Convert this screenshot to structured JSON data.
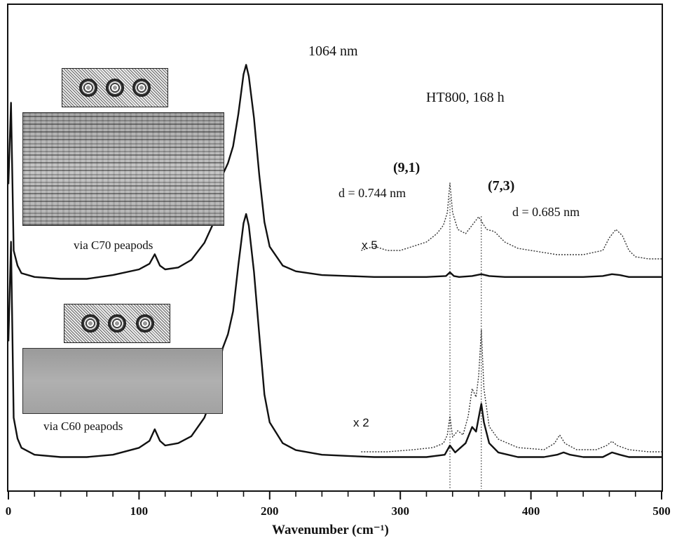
{
  "chart_data": {
    "type": "line",
    "xlabel": "Wavenumber (cm⁻¹)",
    "xlim": [
      0,
      500
    ],
    "x_ticks": [
      0,
      100,
      200,
      300,
      400,
      500
    ],
    "annotations": {
      "laser": "1064 nm",
      "condition": "HT800, 168 h",
      "peak_a_index": "(9,1)",
      "peak_a_d": "d = 0.744 nm",
      "peak_b_index": "(7,3)",
      "peak_b_d": "d = 0.685 nm",
      "scale_top": "x 5",
      "scale_bottom": "x 2",
      "inset_top_caption": "via C70 peapods",
      "inset_bottom_caption": "via C60 peapods"
    },
    "marker_lines_x": [
      338,
      362
    ],
    "series": [
      {
        "label": "via C70 peapods",
        "style": "solid",
        "x": [
          0,
          2,
          4,
          7,
          10,
          20,
          40,
          60,
          80,
          100,
          108,
          112,
          116,
          120,
          130,
          140,
          150,
          158,
          164,
          168,
          172,
          176,
          180,
          182,
          184,
          188,
          192,
          196,
          200,
          210,
          220,
          240,
          260,
          280,
          300,
          320,
          335,
          338,
          341,
          345,
          355,
          362,
          368,
          380,
          400,
          420,
          440,
          455,
          462,
          468,
          475,
          490,
          500
        ],
        "y": [
          0.55,
          0.98,
          0.2,
          0.12,
          0.08,
          0.06,
          0.05,
          0.05,
          0.07,
          0.1,
          0.13,
          0.18,
          0.12,
          0.1,
          0.11,
          0.15,
          0.24,
          0.36,
          0.6,
          0.66,
          0.75,
          0.92,
          1.13,
          1.18,
          1.12,
          0.9,
          0.6,
          0.35,
          0.22,
          0.12,
          0.09,
          0.07,
          0.065,
          0.06,
          0.06,
          0.06,
          0.065,
          0.085,
          0.065,
          0.06,
          0.065,
          0.075,
          0.065,
          0.06,
          0.06,
          0.06,
          0.06,
          0.065,
          0.075,
          0.07,
          0.06,
          0.06,
          0.06
        ]
      },
      {
        "label": "via C70 peapods x 5",
        "style": "dotted",
        "x": [
          270,
          280,
          290,
          300,
          310,
          320,
          328,
          333,
          336,
          338,
          340,
          344,
          350,
          355,
          360,
          362,
          366,
          372,
          380,
          390,
          400,
          410,
          420,
          440,
          455,
          460,
          465,
          470,
          475,
          480,
          490,
          500
        ],
        "y": [
          0.18,
          0.2,
          0.18,
          0.18,
          0.2,
          0.22,
          0.26,
          0.3,
          0.36,
          0.5,
          0.36,
          0.28,
          0.26,
          0.3,
          0.34,
          0.32,
          0.28,
          0.27,
          0.22,
          0.19,
          0.18,
          0.17,
          0.16,
          0.16,
          0.18,
          0.24,
          0.28,
          0.25,
          0.18,
          0.15,
          0.14,
          0.14
        ]
      },
      {
        "label": "via C60 peapods",
        "style": "solid",
        "x": [
          0,
          2,
          4,
          7,
          10,
          20,
          40,
          60,
          80,
          100,
          108,
          112,
          116,
          120,
          130,
          140,
          150,
          158,
          164,
          168,
          172,
          176,
          180,
          182,
          184,
          188,
          192,
          196,
          200,
          210,
          220,
          240,
          260,
          280,
          300,
          320,
          334,
          338,
          342,
          346,
          350,
          355,
          358,
          360,
          362,
          364,
          368,
          375,
          390,
          410,
          420,
          425,
          430,
          440,
          455,
          462,
          468,
          475,
          490,
          500
        ],
        "y": [
          0.55,
          0.98,
          0.22,
          0.13,
          0.09,
          0.06,
          0.05,
          0.05,
          0.06,
          0.09,
          0.12,
          0.17,
          0.12,
          0.1,
          0.11,
          0.14,
          0.22,
          0.34,
          0.52,
          0.58,
          0.68,
          0.88,
          1.06,
          1.1,
          1.05,
          0.85,
          0.58,
          0.32,
          0.2,
          0.11,
          0.08,
          0.06,
          0.055,
          0.05,
          0.05,
          0.05,
          0.06,
          0.1,
          0.07,
          0.09,
          0.11,
          0.18,
          0.16,
          0.22,
          0.28,
          0.2,
          0.11,
          0.07,
          0.05,
          0.05,
          0.06,
          0.07,
          0.06,
          0.05,
          0.05,
          0.07,
          0.06,
          0.05,
          0.05,
          0.05
        ]
      },
      {
        "label": "via C60 peapods x 2",
        "style": "dotted",
        "x": [
          270,
          290,
          310,
          325,
          333,
          336,
          338,
          340,
          344,
          348,
          352,
          355,
          358,
          360,
          362,
          364,
          368,
          375,
          390,
          410,
          418,
          422,
          426,
          435,
          450,
          458,
          462,
          466,
          475,
          490,
          500
        ],
        "y": [
          0.08,
          0.08,
          0.09,
          0.1,
          0.12,
          0.16,
          0.25,
          0.15,
          0.18,
          0.16,
          0.25,
          0.38,
          0.34,
          0.44,
          0.66,
          0.38,
          0.2,
          0.14,
          0.1,
          0.09,
          0.12,
          0.16,
          0.12,
          0.09,
          0.09,
          0.11,
          0.13,
          0.11,
          0.09,
          0.08,
          0.08
        ]
      }
    ]
  }
}
